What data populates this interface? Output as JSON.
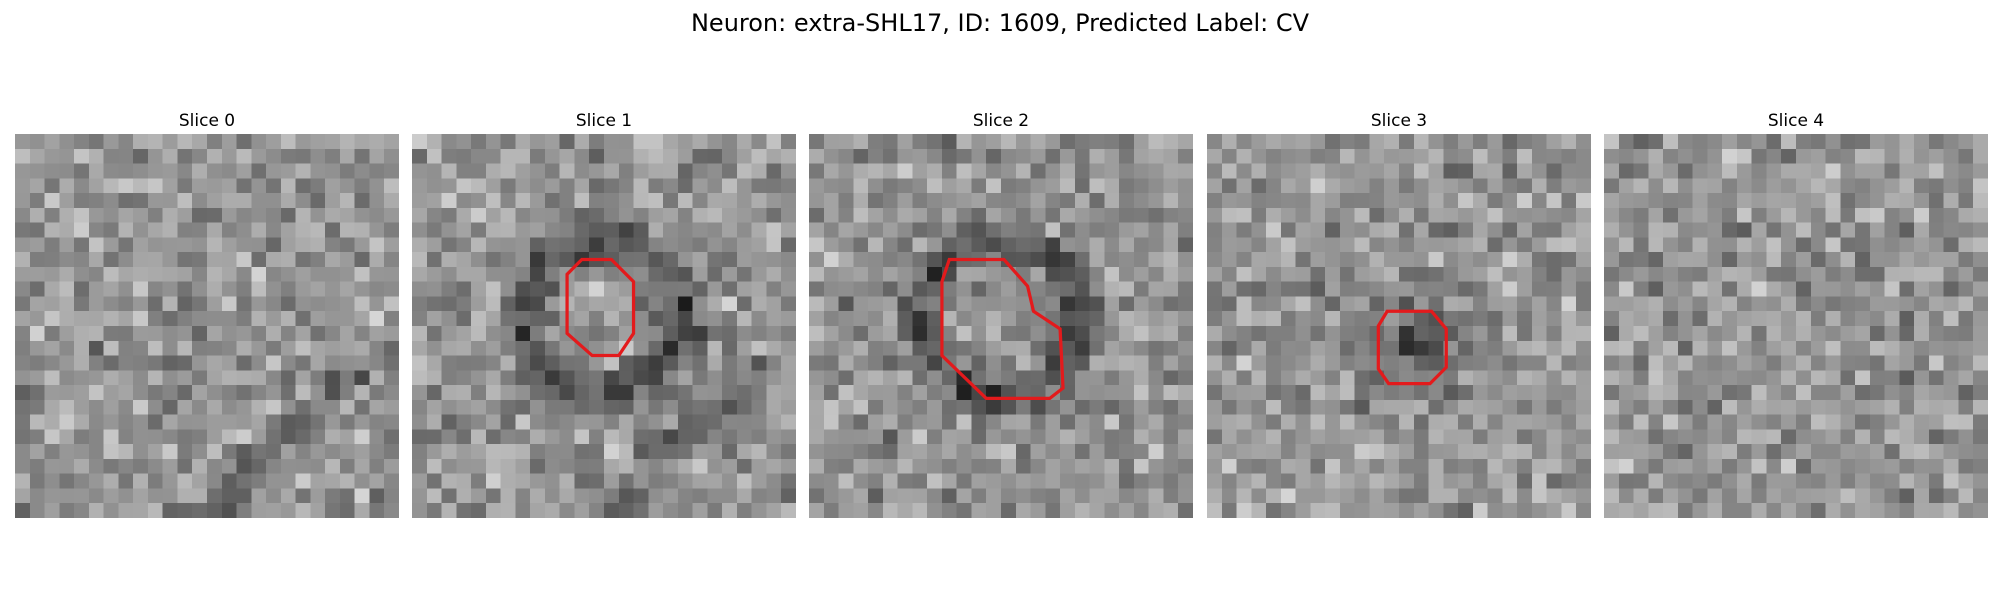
{
  "figure": {
    "title": "Neuron: extra-SHL17, ID: 1609, Predicted Label: CV"
  },
  "colors": {
    "background": "#ffffff",
    "contour": "#e31a1c",
    "colormap": "grayscale"
  },
  "grid_size": 26,
  "slices": [
    {
      "title": "Slice 0",
      "has_contour": false,
      "dark_ring": false,
      "dark_blob": false,
      "diag_streak": true,
      "contour": []
    },
    {
      "title": "Slice 1",
      "has_contour": true,
      "dark_ring": true,
      "dark_blob": false,
      "diag_streak": true,
      "contour": [
        [
          11.5,
          8.5
        ],
        [
          13.5,
          8.5
        ],
        [
          15,
          10
        ],
        [
          15,
          13.5
        ],
        [
          14,
          15
        ],
        [
          12.2,
          15
        ],
        [
          10.5,
          13.5
        ],
        [
          10.5,
          9.5
        ]
      ]
    },
    {
      "title": "Slice 2",
      "has_contour": true,
      "dark_ring": true,
      "dark_blob": false,
      "diag_streak": false,
      "contour": [
        [
          9.5,
          8.5
        ],
        [
          13.2,
          8.5
        ],
        [
          14.8,
          10.3
        ],
        [
          15.2,
          12
        ],
        [
          17,
          13.2
        ],
        [
          17.2,
          17.2
        ],
        [
          16.3,
          17.9
        ],
        [
          12,
          17.9
        ],
        [
          9,
          15
        ],
        [
          9,
          10
        ]
      ]
    },
    {
      "title": "Slice 3",
      "has_contour": true,
      "dark_ring": false,
      "dark_blob": true,
      "diag_streak": false,
      "contour": [
        [
          12.2,
          12
        ],
        [
          15.2,
          12
        ],
        [
          16.2,
          13.2
        ],
        [
          16.2,
          15.8
        ],
        [
          15.1,
          16.9
        ],
        [
          12.3,
          16.9
        ],
        [
          11.6,
          15.9
        ],
        [
          11.6,
          13
        ]
      ]
    },
    {
      "title": "Slice 4",
      "has_contour": false,
      "dark_ring": false,
      "dark_blob": false,
      "diag_streak": false,
      "contour": []
    }
  ]
}
